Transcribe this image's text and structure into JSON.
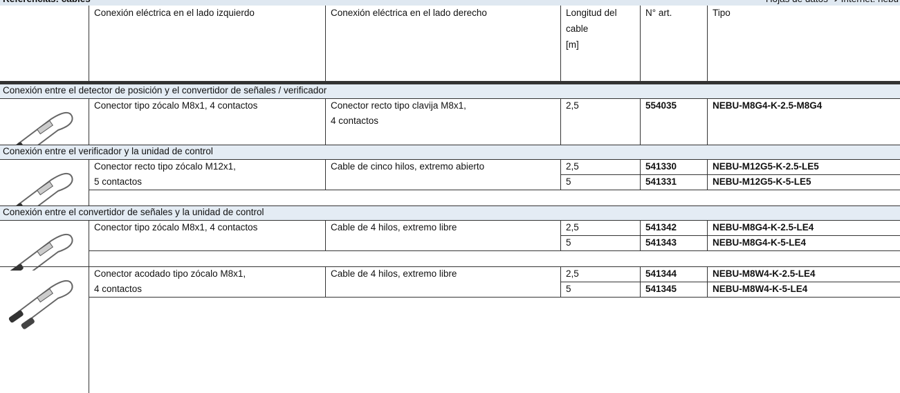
{
  "header": {
    "title": "Referencias: cables",
    "link": "Hojas de datos ➔ Internet: nebu"
  },
  "columns": [
    [
      "Conexión eléctrica en el lado izquierdo"
    ],
    [
      "Conexión eléctrica en el lado derecho"
    ],
    [
      "Longitud del",
      "cable",
      "[m]"
    ],
    [
      "N° art."
    ],
    [
      "Tipo"
    ]
  ],
  "sections": [
    {
      "title": "Conexión entre el detector de posición y el convertidor de señales / verificador",
      "rows": [
        {
          "left": [
            "Conector tipo zócalo M8x1, 4 contactos"
          ],
          "right": [
            "Conector recto tipo clavija M8x1,",
            "4 contactos"
          ],
          "items": [
            {
              "length": "2,5",
              "art": "554035",
              "type": "NEBU-M8G4-K-2.5-M8G4"
            }
          ]
        }
      ]
    },
    {
      "title": "Conexión entre el verificador y la unidad de control",
      "rows": [
        {
          "left": [
            "Conector recto tipo zócalo M12x1,",
            "5 contactos"
          ],
          "right": [
            "Cable de cinco hilos, extremo abierto"
          ],
          "items": [
            {
              "length": "2,5",
              "art": "541330",
              "type": "NEBU-M12G5-K-2.5-LE5"
            },
            {
              "length": "5",
              "art": "541331",
              "type": "NEBU-M12G5-K-5-LE5"
            }
          ]
        }
      ]
    },
    {
      "title": "Conexión entre el convertidor de señales y la unidad de control",
      "rows": [
        {
          "left": [
            "Conector tipo zócalo M8x1, 4 contactos"
          ],
          "right": [
            "Cable de 4 hilos, extremo libre"
          ],
          "items": [
            {
              "length": "2,5",
              "art": "541342",
              "type": "NEBU-M8G4-K-2.5-LE4"
            },
            {
              "length": "5",
              "art": "541343",
              "type": "NEBU-M8G4-K-5-LE4"
            }
          ]
        },
        {
          "left": [
            "Conector acodado tipo zócalo M8x1,",
            "4 contactos"
          ],
          "right": [
            "Cable de 4 hilos, extremo libre"
          ],
          "items": [
            {
              "length": "2,5",
              "art": "541344",
              "type": "NEBU-M8W4-K-2.5-LE4"
            },
            {
              "length": "5",
              "art": "541345",
              "type": "NEBU-M8W4-K-5-LE4"
            }
          ]
        }
      ]
    }
  ]
}
